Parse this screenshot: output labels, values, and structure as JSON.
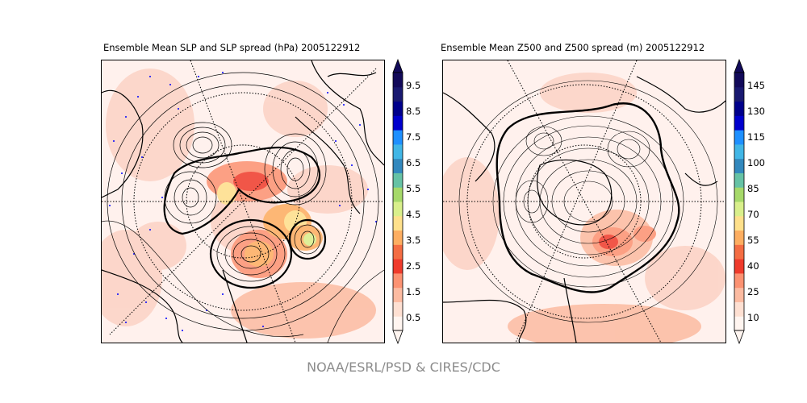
{
  "panels": [
    {
      "title": "Ensemble Mean SLP and SLP spread (hPa) 2005122912",
      "colorbar_ticks": [
        "0.5",
        "1.5",
        "2.5",
        "3.5",
        "4.5",
        "5.5",
        "6.5",
        "7.5",
        "8.5",
        "9.5"
      ]
    },
    {
      "title": "Ensemble Mean Z500 and Z500 spread (m) 2005122912",
      "colorbar_ticks": [
        "10",
        "25",
        "40",
        "55",
        "70",
        "85",
        "100",
        "115",
        "130",
        "145"
      ]
    }
  ],
  "colorbar_colors": [
    "#fff5f0",
    "#fee0d2",
    "#fcbba1",
    "#fc9272",
    "#ef3b2c",
    "#f46d43",
    "#fdae61",
    "#fee08b",
    "#d9ef8b",
    "#a6d96a",
    "#66c2a5",
    "#3288bd",
    "#41b6e6",
    "#1e90ff",
    "#0000cd",
    "#00008b",
    "#191970",
    "#120a5a"
  ],
  "credit": "NOAA/ESRL/PSD & CIRES/CDC"
}
